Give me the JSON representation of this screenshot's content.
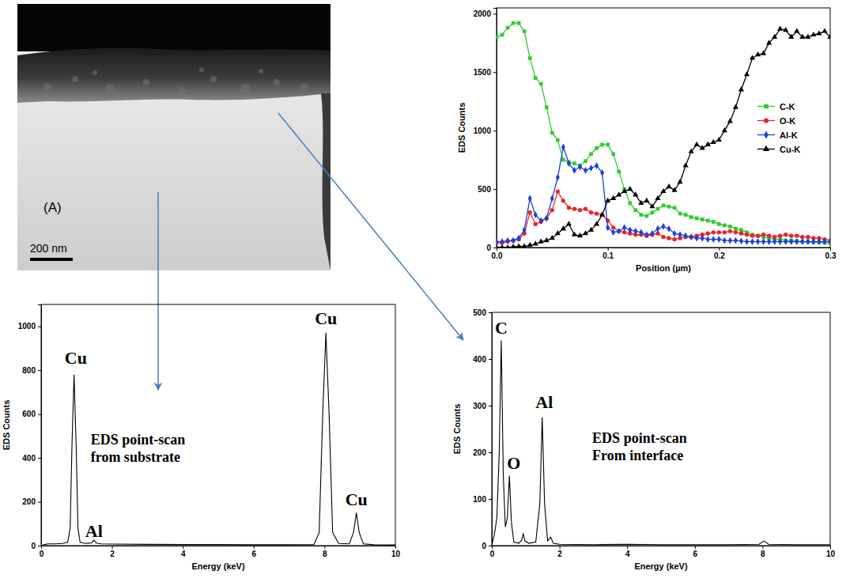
{
  "micrograph": {
    "panel_label": "(A)",
    "scale_bar": "200 nm"
  },
  "chart_data": [
    {
      "type": "line",
      "x_label": "Position (µm)",
      "y_label": "EDS Counts",
      "xlim": [
        0,
        0.3
      ],
      "xticks": [
        {
          "value": 0,
          "label": "0.0"
        },
        0.1,
        0.2,
        0.3
      ],
      "ylim": [
        0,
        2050
      ],
      "yticks": [
        0,
        500,
        1000,
        1500,
        2000
      ],
      "legend": "right",
      "x": [
        0,
        0.005,
        0.01,
        0.015,
        0.02,
        0.025,
        0.03,
        0.035,
        0.04,
        0.045,
        0.05,
        0.055,
        0.06,
        0.065,
        0.07,
        0.075,
        0.08,
        0.085,
        0.09,
        0.095,
        0.1,
        0.105,
        0.11,
        0.115,
        0.12,
        0.125,
        0.13,
        0.135,
        0.14,
        0.145,
        0.15,
        0.155,
        0.16,
        0.165,
        0.17,
        0.175,
        0.18,
        0.185,
        0.19,
        0.195,
        0.2,
        0.205,
        0.21,
        0.215,
        0.22,
        0.225,
        0.23,
        0.235,
        0.24,
        0.245,
        0.25,
        0.255,
        0.26,
        0.265,
        0.27,
        0.275,
        0.28,
        0.285,
        0.29,
        0.295,
        0.3
      ],
      "series": [
        {
          "name": "C-K",
          "color": "#2ecc2e",
          "marker": "square",
          "values": [
            1800,
            1820,
            1880,
            1920,
            1920,
            1850,
            1620,
            1450,
            1400,
            1200,
            980,
            920,
            750,
            730,
            720,
            700,
            740,
            800,
            850,
            880,
            880,
            800,
            650,
            500,
            380,
            320,
            280,
            270,
            300,
            330,
            360,
            350,
            340,
            290,
            280,
            260,
            250,
            240,
            230,
            220,
            200,
            190,
            180,
            160,
            150,
            130,
            110,
            100,
            90,
            80,
            70,
            70,
            60,
            60,
            55,
            50,
            50,
            45,
            45,
            40,
            40
          ]
        },
        {
          "name": "O-K",
          "color": "#e8262a",
          "marker": "circle",
          "values": [
            40,
            40,
            50,
            60,
            70,
            120,
            300,
            200,
            220,
            250,
            320,
            480,
            400,
            340,
            330,
            320,
            330,
            300,
            290,
            280,
            230,
            170,
            140,
            130,
            120,
            110,
            110,
            100,
            110,
            120,
            90,
            80,
            70,
            80,
            90,
            90,
            100,
            110,
            120,
            130,
            130,
            130,
            140,
            130,
            120,
            110,
            100,
            100,
            110,
            100,
            90,
            100,
            110,
            100,
            100,
            90,
            90,
            80,
            80,
            70,
            60
          ]
        },
        {
          "name": "Al-K",
          "color": "#1f3fdb",
          "marker": "diamond",
          "values": [
            50,
            50,
            60,
            60,
            80,
            150,
            420,
            280,
            230,
            250,
            420,
            600,
            860,
            720,
            660,
            690,
            660,
            680,
            700,
            640,
            170,
            130,
            140,
            170,
            150,
            140,
            130,
            110,
            120,
            160,
            180,
            160,
            120,
            110,
            100,
            90,
            80,
            80,
            70,
            70,
            70,
            60,
            60,
            60,
            55,
            50,
            50,
            50,
            50,
            50,
            50,
            50,
            50,
            50,
            50,
            50,
            50,
            50,
            50,
            50,
            50
          ]
        },
        {
          "name": "Cu-K",
          "color": "#000000",
          "marker": "triangle",
          "values": [
            0,
            0,
            0,
            5,
            10,
            10,
            20,
            30,
            50,
            60,
            80,
            120,
            160,
            200,
            110,
            100,
            120,
            150,
            200,
            280,
            400,
            420,
            450,
            480,
            500,
            450,
            380,
            400,
            350,
            420,
            480,
            520,
            490,
            560,
            700,
            820,
            880,
            850,
            880,
            900,
            920,
            1000,
            1080,
            1200,
            1350,
            1480,
            1620,
            1650,
            1660,
            1750,
            1800,
            1870,
            1860,
            1800,
            1850,
            1800,
            1800,
            1820,
            1830,
            1850,
            1800
          ]
        }
      ]
    },
    {
      "type": "line",
      "x_label": "Energy (keV)",
      "y_label": "EDS Counts",
      "xlim": [
        0,
        10
      ],
      "xticks": [
        0,
        2,
        4,
        6,
        8,
        10
      ],
      "ylim": [
        0,
        1100
      ],
      "yticks": [
        0,
        200,
        400,
        600,
        800,
        1000
      ],
      "color": "#000000",
      "x": [
        0,
        0.1,
        0.2,
        0.4,
        0.6,
        0.75,
        0.82,
        0.87,
        0.93,
        0.99,
        1.04,
        1.1,
        1.25,
        1.42,
        1.49,
        1.56,
        1.7,
        2,
        3,
        4,
        5,
        6,
        7,
        7.7,
        7.85,
        7.95,
        8.04,
        8.13,
        8.23,
        8.4,
        8.7,
        8.82,
        8.9,
        8.98,
        9.1,
        9.4,
        10
      ],
      "values": [
        0,
        5,
        8,
        8,
        10,
        15,
        80,
        450,
        780,
        450,
        80,
        15,
        10,
        12,
        25,
        12,
        8,
        7,
        6,
        5,
        5,
        4,
        4,
        5,
        60,
        600,
        970,
        600,
        60,
        10,
        8,
        60,
        150,
        60,
        8,
        4,
        3
      ],
      "annotations": [
        {
          "text": "Cu",
          "x": 0.98,
          "y": 830
        },
        {
          "text": "Al",
          "x": 1.49,
          "y": 40
        },
        {
          "text": "Cu",
          "x": 8.04,
          "y": 1010
        },
        {
          "text": "Cu",
          "x": 8.9,
          "y": 185
        }
      ],
      "note": {
        "lines": [
          "EDS point-scan",
          "from substrate"
        ],
        "x": 1.4,
        "y": 463
      }
    },
    {
      "type": "line",
      "x_label": "Energy (keV)",
      "y_label": "EDS Counts",
      "xlim": [
        0,
        10
      ],
      "xticks": [
        0,
        2,
        4,
        6,
        8,
        10
      ],
      "ylim": [
        0,
        500
      ],
      "yticks": [
        0,
        100,
        200,
        300,
        400,
        500
      ],
      "color": "#000000",
      "x": [
        0,
        0.08,
        0.15,
        0.22,
        0.28,
        0.34,
        0.4,
        0.46,
        0.52,
        0.58,
        0.65,
        0.8,
        0.88,
        0.93,
        0.98,
        1.1,
        1.3,
        1.42,
        1.49,
        1.56,
        1.65,
        1.74,
        1.82,
        2,
        3,
        4,
        5,
        6,
        7,
        7.9,
        8.04,
        8.18,
        9,
        10
      ],
      "values": [
        0,
        25,
        60,
        200,
        440,
        150,
        40,
        60,
        150,
        50,
        8,
        5,
        12,
        25,
        10,
        5,
        8,
        90,
        275,
        90,
        10,
        18,
        5,
        3,
        2,
        3,
        2,
        2,
        2,
        3,
        10,
        3,
        2,
        2
      ],
      "annotations": [
        {
          "text": "C",
          "x": 0.28,
          "y": 455
        },
        {
          "text": "O",
          "x": 0.65,
          "y": 165
        },
        {
          "text": "Al",
          "x": 1.55,
          "y": 295
        }
      ],
      "note": {
        "lines": [
          "EDS point-scan",
          "From interface"
        ],
        "x": 2.97,
        "y": 220
      }
    }
  ]
}
